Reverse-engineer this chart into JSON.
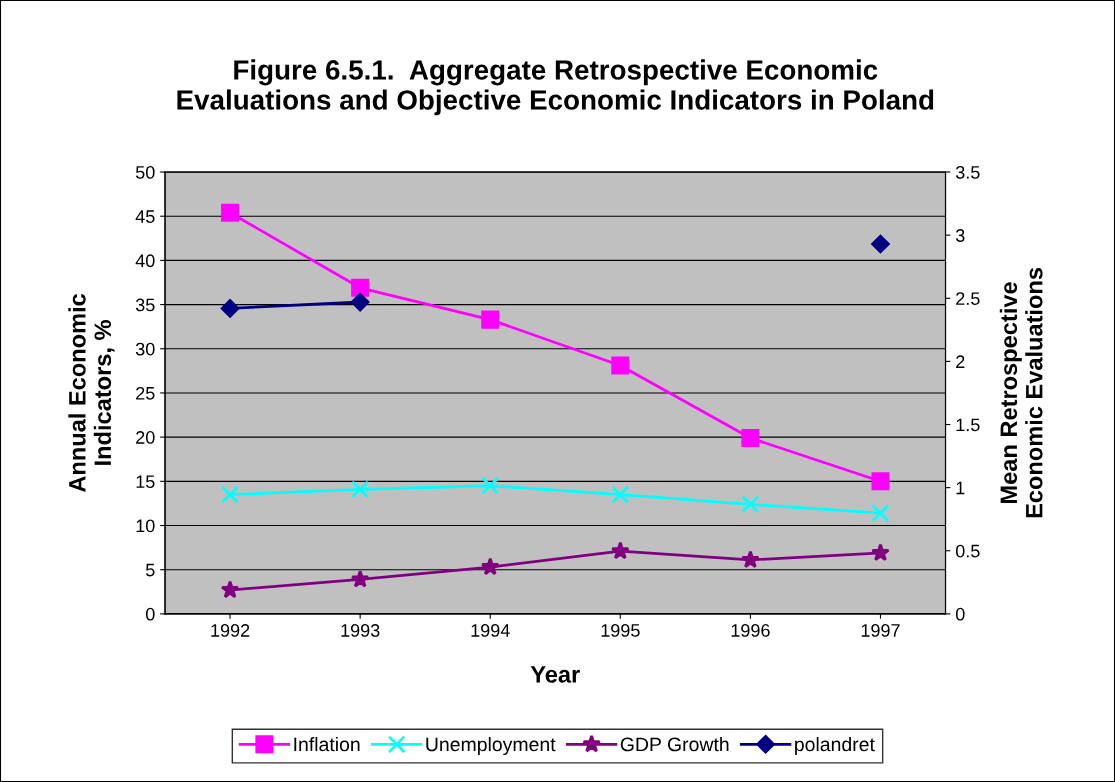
{
  "chart_data": {
    "type": "line",
    "title": "Figure 6.5.1.  Aggregate Retrospective Economic\nEvaluations and Objective Economic Indicators in Poland",
    "xlabel": "Year",
    "ylabel": "Annual Economic\nIndicators, %",
    "y2label": "Mean Retrospective\nEconomic Evaluations",
    "categories": [
      "1992",
      "1993",
      "1994",
      "1995",
      "1996",
      "1997"
    ],
    "series": [
      {
        "name": "Inflation",
        "color": "#ff00ff",
        "marker": "square",
        "values": [
          45.4,
          36.9,
          33.3,
          28.1,
          19.9,
          15.0
        ]
      },
      {
        "name": "Unemployment",
        "color": "#00ffff",
        "marker": "cross",
        "values": [
          13.5,
          14.1,
          14.5,
          13.5,
          12.4,
          11.4
        ]
      },
      {
        "name": "GDP Growth",
        "color": "#800080",
        "marker": "star",
        "values": [
          2.7,
          3.9,
          5.3,
          7.1,
          6.1,
          6.9
        ]
      },
      {
        "name": "polandret",
        "color": "#000080",
        "marker": "diamond",
        "axis": "y2",
        "values": [
          2.42,
          2.47,
          null,
          null,
          null,
          2.93
        ]
      }
    ],
    "ylim": [
      0,
      50
    ],
    "yticks": [
      0,
      5,
      10,
      15,
      20,
      25,
      30,
      35,
      40,
      45,
      50
    ],
    "y2lim": [
      0,
      3.5
    ],
    "y2ticks": [
      0,
      0.5,
      1,
      1.5,
      2,
      2.5,
      3,
      3.5
    ],
    "grid": "y",
    "legend": "bottom"
  }
}
